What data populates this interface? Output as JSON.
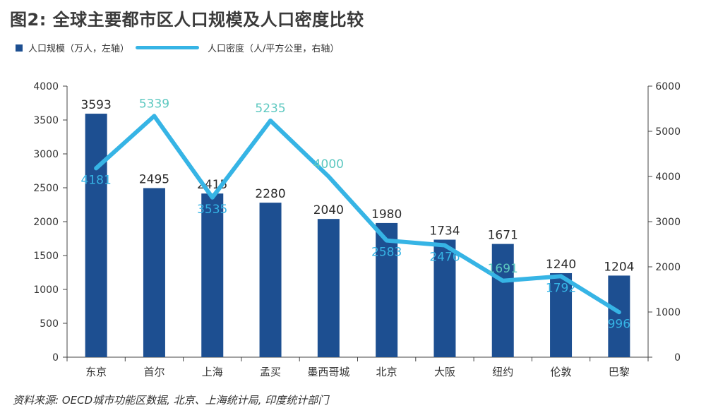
{
  "title": "图2: 全球主要都市区人口规模及人口密度比较",
  "source": "资料来源: OECD城市功能区数据, 北京、上海统计局, 印度统计部门",
  "colors": {
    "bar": "#1d4f91",
    "line": "#36b4e5",
    "bar_label": "#2b2b2b",
    "line_label_dark": "#36b4e5",
    "line_label_teal": "#5cc8c0",
    "axis": "#444444"
  },
  "chart_data": {
    "type": "bar",
    "categories": [
      "东京",
      "首尔",
      "上海",
      "孟买",
      "墨西哥城",
      "北京",
      "大阪",
      "纽约",
      "伦敦",
      "巴黎"
    ],
    "series": [
      {
        "name": "人口规模（万人，左轴）",
        "type": "bar",
        "axis": "left",
        "values": [
          3593,
          2495,
          2415,
          2280,
          2040,
          1980,
          1734,
          1671,
          1240,
          1204
        ]
      },
      {
        "name": "人口密度（人/平方公里，右轴）",
        "type": "line",
        "axis": "right",
        "values": [
          4181,
          5339,
          3535,
          5235,
          4000,
          2583,
          2476,
          1691,
          1792,
          996
        ],
        "label_style": [
          "dark",
          "teal",
          "dark",
          "teal",
          "teal",
          "dark",
          "dark",
          "teal",
          "dark",
          "dark"
        ],
        "label_position": [
          "below",
          "above",
          "below",
          "above",
          "above",
          "below",
          "below",
          "above",
          "below",
          "below"
        ]
      }
    ],
    "y_left": {
      "min": 0,
      "max": 4000,
      "ticks": [
        0,
        500,
        1000,
        1500,
        2000,
        2500,
        3000,
        3500,
        4000
      ]
    },
    "y_right": {
      "min": 0,
      "max": 6000,
      "ticks": [
        0,
        1000,
        2000,
        3000,
        4000,
        5000,
        6000
      ]
    },
    "grid": false,
    "legend_position": "top-left"
  }
}
